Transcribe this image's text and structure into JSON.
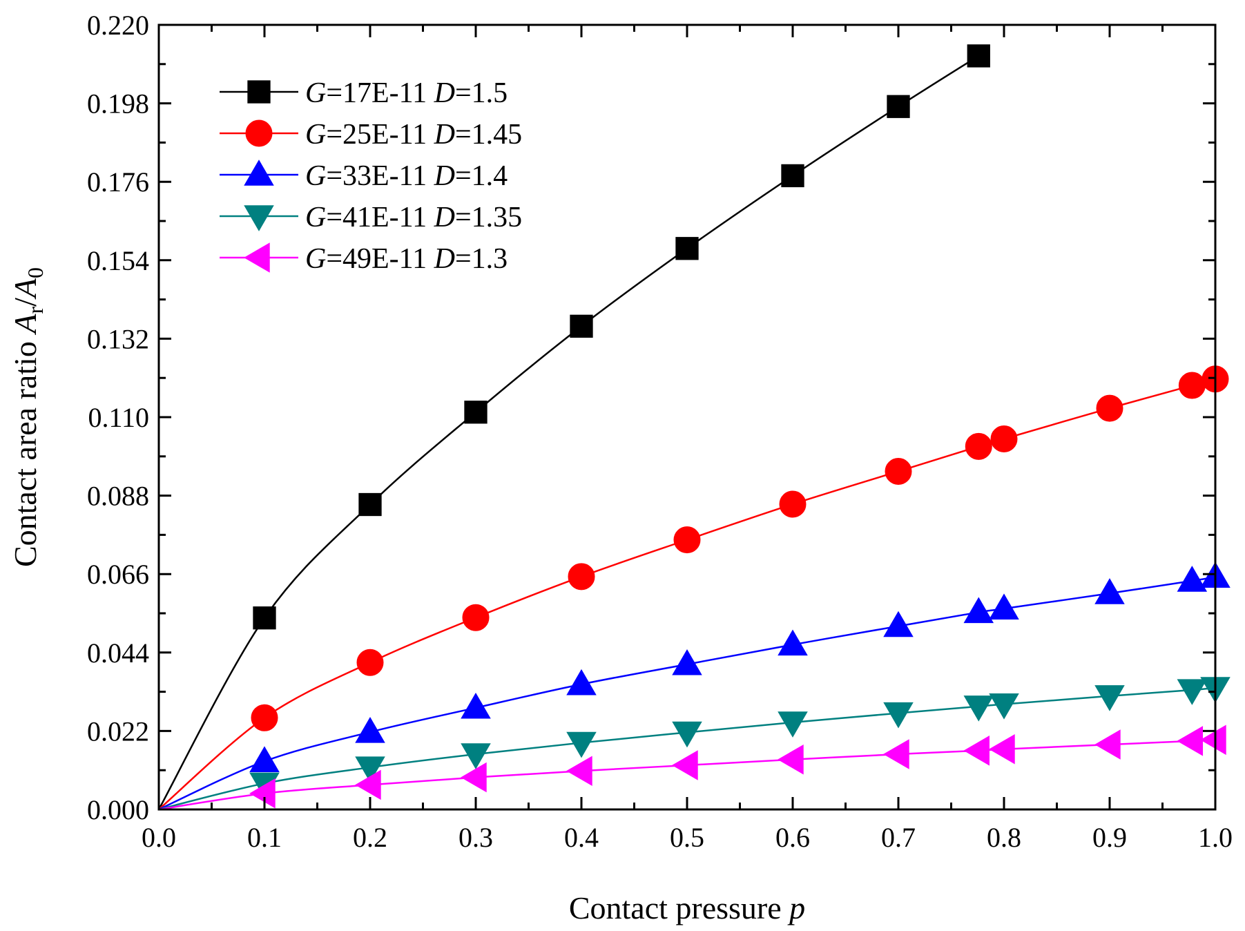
{
  "chart_data": {
    "type": "line",
    "title": "",
    "xlabel": {
      "main": "Contact pressure ",
      "var": "p"
    },
    "ylabel": {
      "main": "Contact area ratio ",
      "var_a": "A",
      "sub_a": "r",
      "slash": "/",
      "var_b": "A",
      "sub_b": "0"
    },
    "xlim": [
      0.0,
      1.0
    ],
    "ylim": [
      0.0,
      0.22
    ],
    "x_ticks": [
      "0.0",
      "0.1",
      "0.2",
      "0.3",
      "0.4",
      "0.5",
      "0.6",
      "0.7",
      "0.8",
      "0.9",
      "1.0"
    ],
    "y_ticks": [
      "0.000",
      "0.022",
      "0.044",
      "0.066",
      "0.088",
      "0.110",
      "0.132",
      "0.154",
      "0.176",
      "0.198",
      "0.220"
    ],
    "grid": false,
    "legend_position": "top-left",
    "series": [
      {
        "name": "G=17E-11 D=1.5",
        "label_parts": [
          "G",
          "=17E-11  ",
          "D",
          "=1.5"
        ],
        "color": "#000000",
        "marker": "square",
        "x": [
          0.0,
          0.1,
          0.2,
          0.3,
          0.4,
          0.5,
          0.6,
          0.7,
          0.776
        ],
        "y": [
          0.0,
          0.0537,
          0.0855,
          0.1114,
          0.1355,
          0.1573,
          0.1777,
          0.1971,
          0.2113
        ]
      },
      {
        "name": "G=25E-11 D=1.45",
        "label_parts": [
          "G",
          "=25E-11  ",
          "D",
          "=1.45"
        ],
        "color": "#ff0000",
        "marker": "circle",
        "x": [
          0.0,
          0.1,
          0.2,
          0.3,
          0.4,
          0.5,
          0.6,
          0.7,
          0.776,
          0.8,
          0.9,
          0.978,
          1.0
        ],
        "y": [
          0.0,
          0.0257,
          0.0412,
          0.0538,
          0.0653,
          0.0756,
          0.0856,
          0.0948,
          0.1018,
          0.1039,
          0.1125,
          0.1189,
          0.1207
        ]
      },
      {
        "name": "G=33E-11 D=1.4",
        "label_parts": [
          "G",
          "=33E-11  ",
          "D",
          "=1.4"
        ],
        "color": "#0000ff",
        "marker": "triangle-up",
        "x": [
          0.0,
          0.1,
          0.2,
          0.3,
          0.4,
          0.5,
          0.6,
          0.7,
          0.776,
          0.8,
          0.9,
          0.978,
          1.0
        ],
        "y": [
          0.0,
          0.0135,
          0.0217,
          0.0285,
          0.0351,
          0.0407,
          0.0462,
          0.0514,
          0.0553,
          0.0563,
          0.0606,
          0.0641,
          0.0652
        ]
      },
      {
        "name": "G=41E-11 D=1.35",
        "label_parts": [
          "G",
          "=41E-11  ",
          "D",
          "=1.35"
        ],
        "color": "#008080",
        "marker": "triangle-down",
        "x": [
          0.0,
          0.1,
          0.2,
          0.3,
          0.4,
          0.5,
          0.6,
          0.7,
          0.776,
          0.8,
          0.9,
          0.978,
          1.0
        ],
        "y": [
          0.0,
          0.0073,
          0.0118,
          0.0155,
          0.0187,
          0.0216,
          0.0244,
          0.027,
          0.0289,
          0.0295,
          0.0318,
          0.0335,
          0.0341
        ]
      },
      {
        "name": "G=49E-11 D=1.3",
        "label_parts": [
          "G",
          "=49E-11  ",
          "D",
          "=1.3"
        ],
        "color": "#ff00ff",
        "marker": "triangle-left",
        "x": [
          0.0,
          0.1,
          0.2,
          0.3,
          0.4,
          0.5,
          0.6,
          0.7,
          0.776,
          0.8,
          0.9,
          0.978,
          1.0
        ],
        "y": [
          0.0,
          0.0045,
          0.0069,
          0.009,
          0.0108,
          0.0124,
          0.014,
          0.0155,
          0.0165,
          0.0169,
          0.0182,
          0.0192,
          0.0195
        ]
      }
    ]
  }
}
